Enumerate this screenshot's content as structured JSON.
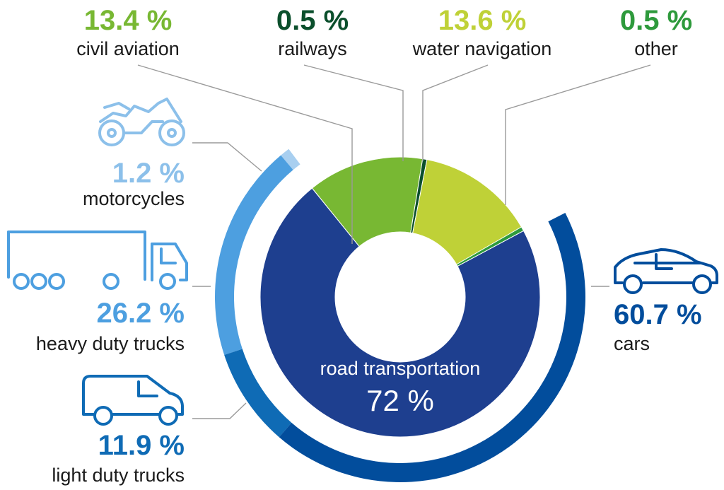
{
  "chart_data": [
    {
      "type": "pie",
      "variant": "donut",
      "slices": [
        {
          "label": "civil aviation",
          "value": 13.4,
          "value_label": "13.4 %",
          "color": "#78b833"
        },
        {
          "label": "railways",
          "value": 0.5,
          "value_label": "0.5 %",
          "color": "#0b4f2c"
        },
        {
          "label": "water navigation",
          "value": 13.6,
          "value_label": "13.6 %",
          "color": "#bfd137"
        },
        {
          "label": "other",
          "value": 0.5,
          "value_label": "0.5 %",
          "color": "#2e9a3c"
        },
        {
          "label": "road transportation",
          "value": 72,
          "value_label": "72 %",
          "color": "#1e3f8f"
        }
      ]
    },
    {
      "type": "pie",
      "variant": "outer-ring",
      "parent": "road transportation",
      "slices": [
        {
          "label": "motorcycles",
          "value": 1.2,
          "value_label": "1.2 %",
          "color": "#a8cff0",
          "icon": "motorcycle-icon"
        },
        {
          "label": "heavy duty trucks",
          "value": 26.2,
          "value_label": "26.2 %",
          "color": "#4d9fe0",
          "icon": "heavy-truck-icon"
        },
        {
          "label": "light duty trucks",
          "value": 11.9,
          "value_label": "11.9 %",
          "color": "#0f6bb5",
          "icon": "van-icon"
        },
        {
          "label": "cars",
          "value": 60.7,
          "value_label": "60.7 %",
          "color": "#024d9c",
          "icon": "car-icon"
        }
      ]
    }
  ],
  "label_colors": {
    "civil aviation": "#78b833",
    "railways": "#0b4f2c",
    "water navigation": "#bfd137",
    "other": "#2e9a3c",
    "motorcycles": "#8cc0ea",
    "heavy duty trucks": "#4d9fe0",
    "light duty trucks": "#0f6bb5",
    "cars": "#024d9c"
  }
}
